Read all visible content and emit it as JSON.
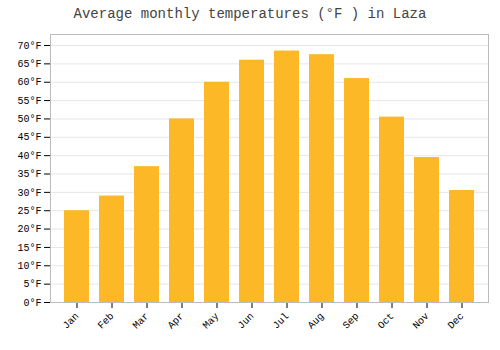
{
  "chart_data": {
    "type": "bar",
    "title": "Average monthly temperatures (°F ) in Laza",
    "categories": [
      "Jan",
      "Feb",
      "Mar",
      "Apr",
      "May",
      "Jun",
      "Jul",
      "Aug",
      "Sep",
      "Oct",
      "Nov",
      "Dec"
    ],
    "values": [
      25,
      29,
      37,
      50,
      60,
      66,
      68.5,
      67.5,
      61,
      50.5,
      39.5,
      30.5
    ],
    "color": "#FDB827",
    "ylim": [
      0,
      73
    ],
    "yticks": [
      {
        "value": 0,
        "label": "0°F"
      },
      {
        "value": 5,
        "label": "5°F"
      },
      {
        "value": 10,
        "label": "10°F"
      },
      {
        "value": 15,
        "label": "15°F"
      },
      {
        "value": 20,
        "label": "20°F"
      },
      {
        "value": 25,
        "label": "25°F"
      },
      {
        "value": 30,
        "label": "30°F"
      },
      {
        "value": 35,
        "label": "35°F"
      },
      {
        "value": 40,
        "label": "40°F"
      },
      {
        "value": 45,
        "label": "45°F"
      },
      {
        "value": 50,
        "label": "50°F"
      },
      {
        "value": 55,
        "label": "55°F"
      },
      {
        "value": 60,
        "label": "60°F"
      },
      {
        "value": 65,
        "label": "65°F"
      },
      {
        "value": 70,
        "label": "70°F"
      }
    ],
    "grid": true
  }
}
